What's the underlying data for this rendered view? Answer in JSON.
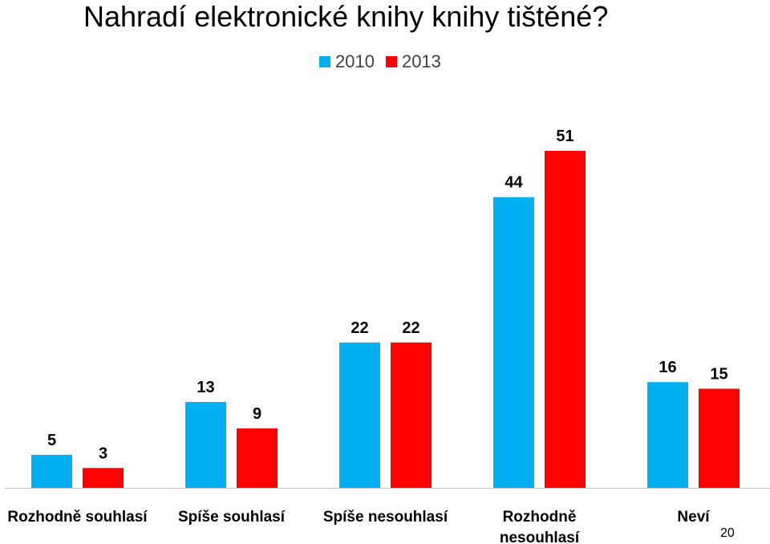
{
  "title": "Nahradí elektronické knihy knihy tištěné?",
  "page_number": "20",
  "chart_data": {
    "type": "bar",
    "title": "Nahradí elektronické knihy knihy tištěné?",
    "categories": [
      [
        "Rozhodně souhlasí"
      ],
      [
        "Spíše souhlasí"
      ],
      [
        "Spíše nesouhlasí"
      ],
      [
        "Rozhodně",
        "nesouhlasí"
      ],
      [
        "Neví"
      ]
    ],
    "series": [
      {
        "name": "2010",
        "color": "#00B0F0",
        "values": [
          5,
          13,
          22,
          44,
          16
        ]
      },
      {
        "name": "2013",
        "color": "#FF0000",
        "values": [
          3,
          9,
          22,
          51,
          15
        ]
      }
    ],
    "ylim": [
      0,
      51
    ],
    "legend": "top",
    "grid": false,
    "data_labels": true
  }
}
